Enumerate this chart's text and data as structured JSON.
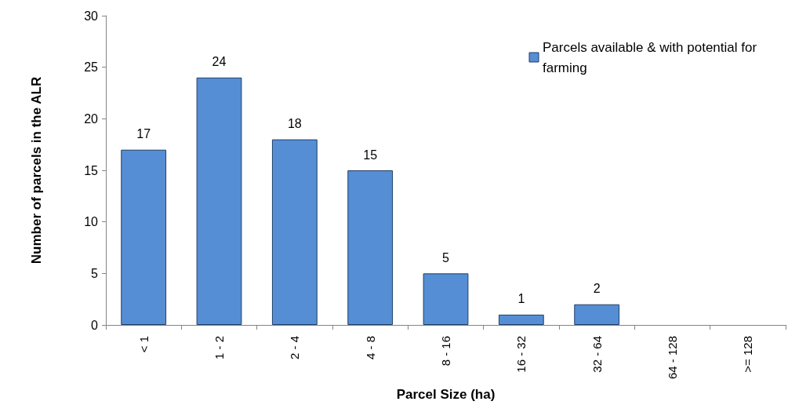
{
  "chart_data": {
    "type": "bar",
    "xlabel": "Parcel Size (ha)",
    "ylabel": "Number of parcels in the ALR",
    "categories": [
      "< 1",
      "1 - 2",
      "2 - 4",
      "4 - 8",
      "8 - 16",
      "16 - 32",
      "32 - 64",
      "64 - 128",
      ">= 128"
    ],
    "series": [
      {
        "name": "Parcels available & with potential for farming",
        "color": "#558ed5",
        "values": [
          17,
          24,
          18,
          15,
          5,
          1,
          2,
          0,
          0
        ],
        "value_labels": [
          "17",
          "24",
          "18",
          "15",
          "5",
          "1",
          "2",
          null,
          null
        ]
      }
    ],
    "ylim": [
      0,
      30
    ],
    "yticks": [
      0,
      5,
      10,
      15,
      20,
      25,
      30
    ],
    "grid": false,
    "legend": "top right"
  }
}
